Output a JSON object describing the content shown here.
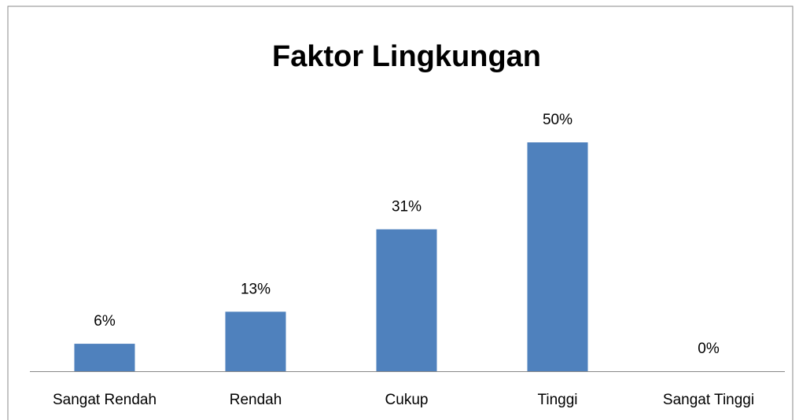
{
  "chart_data": {
    "type": "bar",
    "title": "Faktor Lingkungan",
    "categories": [
      "Sangat Rendah",
      "Rendah",
      "Cukup",
      "Tinggi",
      "Sangat Tinggi"
    ],
    "values": [
      6,
      13,
      31,
      50,
      0
    ],
    "value_labels": [
      "6%",
      "13%",
      "31%",
      "50%",
      "0%"
    ],
    "color": "#4f81bd"
  }
}
